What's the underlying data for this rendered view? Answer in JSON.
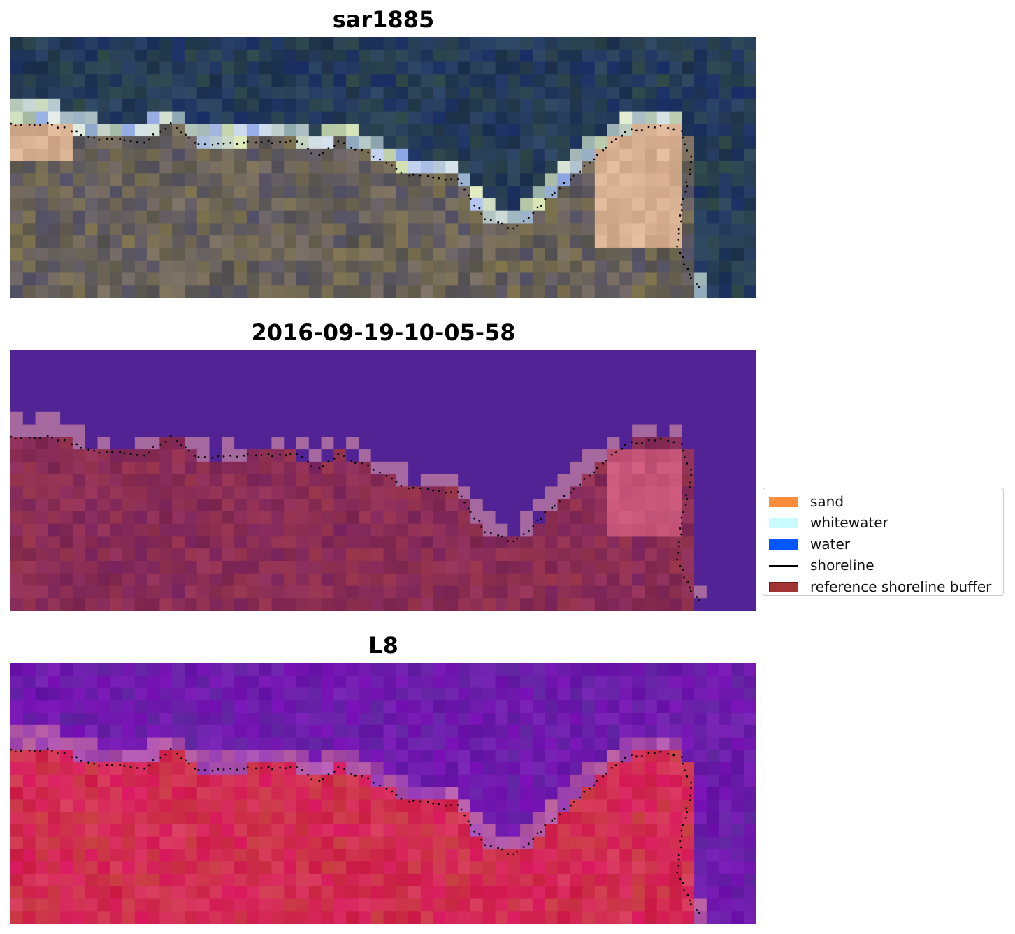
{
  "panels": [
    {
      "id": "rgb",
      "title": "sar1885",
      "style": "rgb"
    },
    {
      "id": "classified",
      "title": "2016-09-19-10-05-58",
      "style": "classified"
    },
    {
      "id": "index",
      "title": "L8",
      "style": "index"
    }
  ],
  "legend": {
    "items": [
      {
        "label": "sand",
        "color": "#ff8c3a",
        "kind": "patch"
      },
      {
        "label": "whitewater",
        "color": "#c8fcfc",
        "kind": "patch"
      },
      {
        "label": "water",
        "color": "#0057ff",
        "kind": "patch"
      },
      {
        "label": "shoreline",
        "color": "#000000",
        "kind": "line"
      },
      {
        "label": "reference shoreline buffer",
        "color": "#a33333",
        "kind": "patch"
      }
    ]
  }
}
